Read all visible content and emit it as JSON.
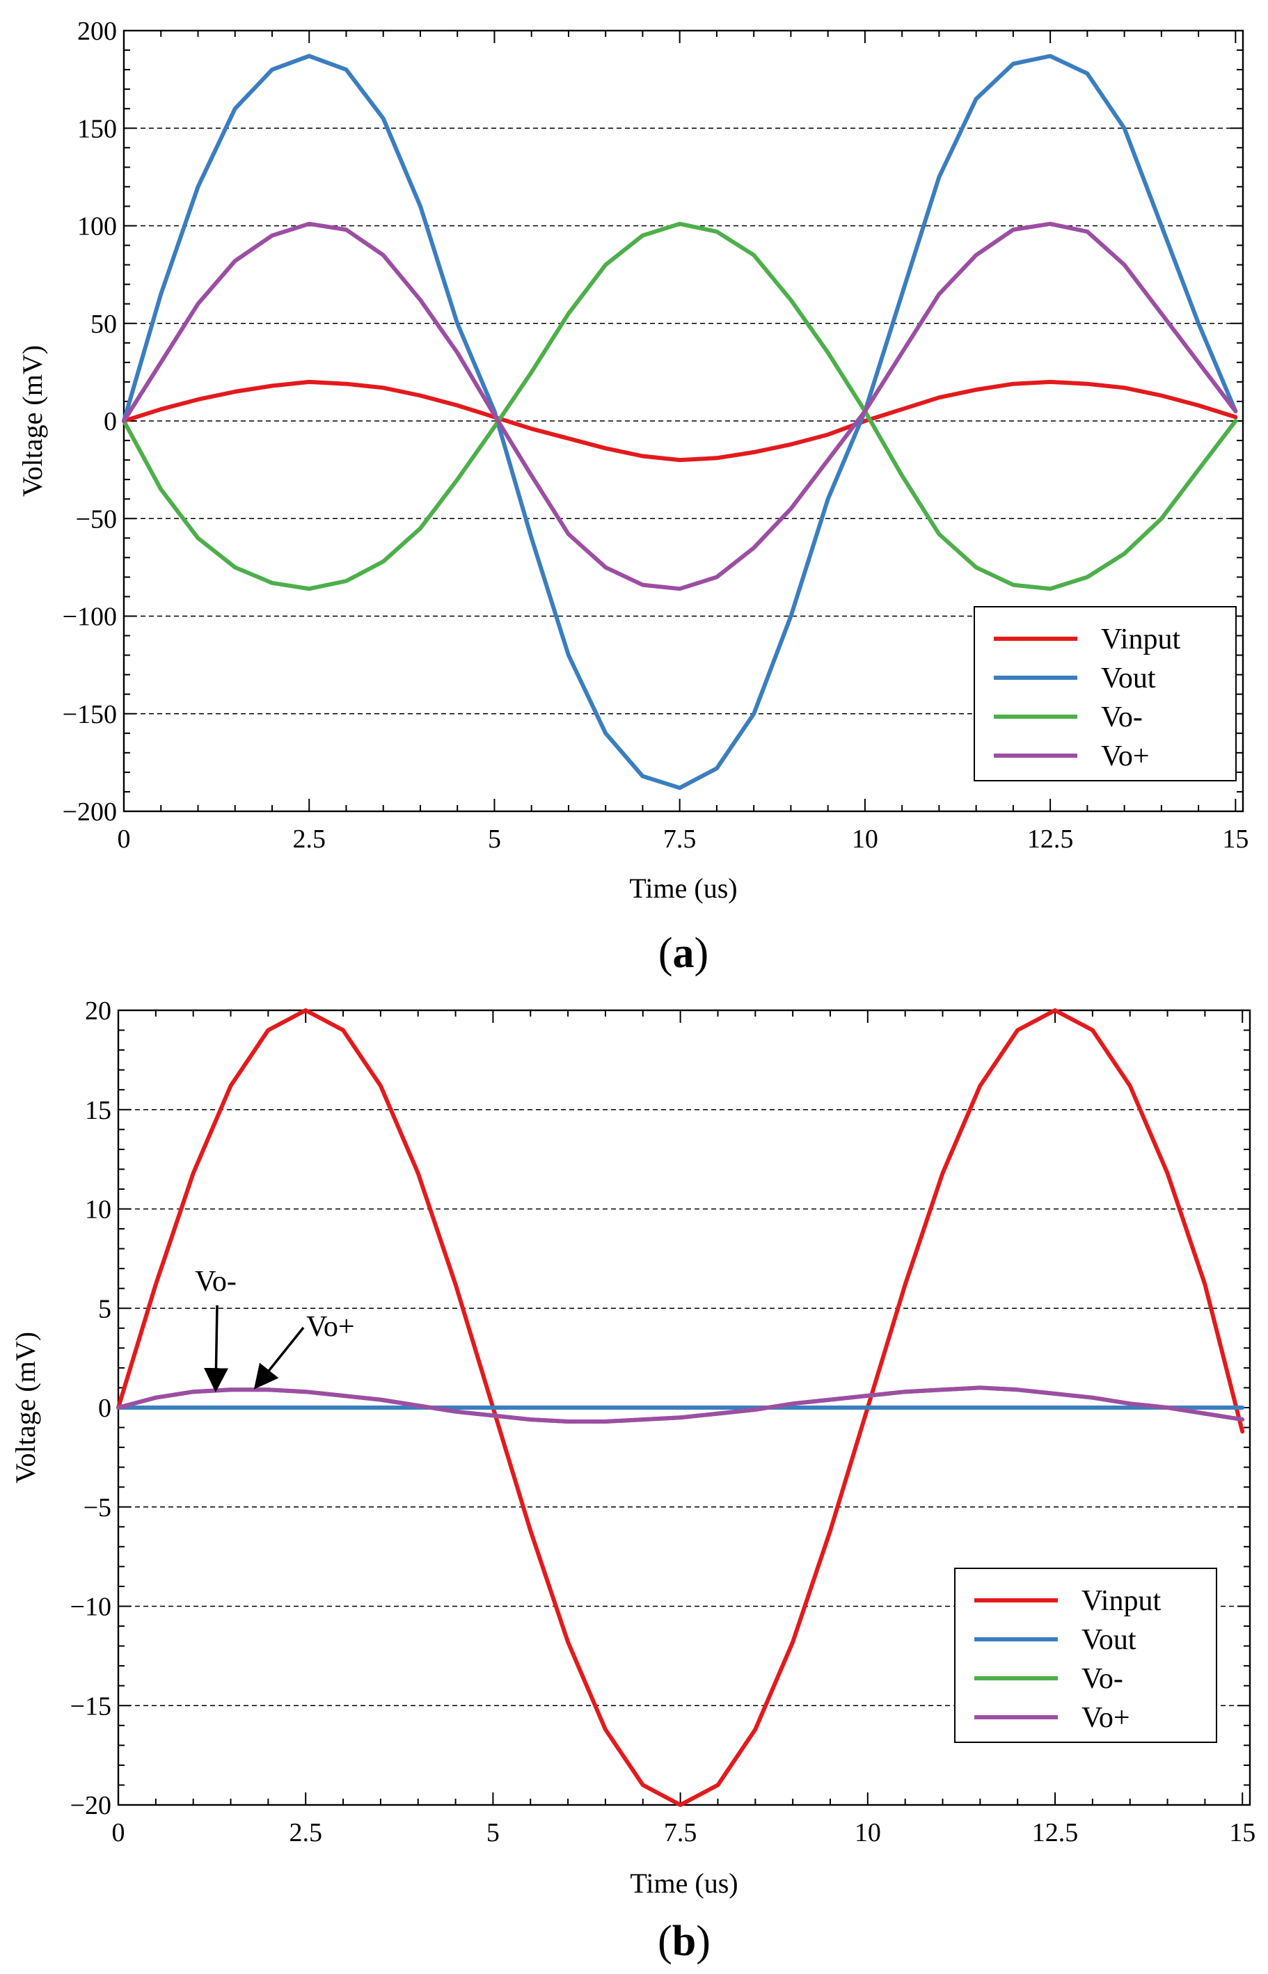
{
  "chart_data": [
    {
      "type": "line",
      "panel_label_open": "(",
      "panel_label_letter": "a",
      "panel_label_close": ")",
      "xlabel": "Time (us)",
      "ylabel": "Voltage (mV)",
      "xlim": [
        0,
        15.1
      ],
      "ylim": [
        -200,
        200
      ],
      "x_ticks": [
        0,
        2.5,
        5,
        7.5,
        10,
        12.5,
        15
      ],
      "x_tick_labels": [
        "0",
        "2.5",
        "5",
        "7.5",
        "10",
        "12.5",
        "15"
      ],
      "y_ticks": [
        -200,
        -150,
        -100,
        -50,
        0,
        50,
        100,
        150,
        200
      ],
      "y_tick_labels": [
        "−200",
        "−150",
        "−100",
        "−50",
        "0",
        "50",
        "100",
        "150",
        "200"
      ],
      "grid": "horizontal-dashed",
      "legend_position": "bottom-right",
      "x": [
        0,
        0.5,
        1,
        1.5,
        2,
        2.5,
        3,
        3.5,
        4,
        4.5,
        5,
        5.5,
        6,
        6.5,
        7,
        7.5,
        8,
        8.5,
        9,
        9.5,
        10,
        10.5,
        11,
        11.5,
        12,
        12.5,
        13,
        13.5,
        14,
        14.5,
        15
      ],
      "series": [
        {
          "name": "Vinput",
          "color": "#e31a1c",
          "values": [
            0,
            6,
            11,
            15,
            18,
            20,
            19,
            17,
            13,
            8,
            2,
            -4,
            -9,
            -14,
            -18,
            -20,
            -19,
            -16,
            -12,
            -7,
            0,
            6,
            12,
            16,
            19,
            20,
            19,
            17,
            13,
            8,
            2
          ]
        },
        {
          "name": "Vout",
          "color": "#3a7ebf",
          "values": [
            0,
            65,
            120,
            160,
            180,
            187,
            180,
            155,
            110,
            50,
            5,
            -60,
            -120,
            -160,
            -182,
            -188,
            -178,
            -150,
            -100,
            -40,
            5,
            65,
            125,
            165,
            183,
            187,
            178,
            150,
            100,
            50,
            5
          ]
        },
        {
          "name": "Vo-",
          "color": "#4daf4a",
          "values": [
            0,
            -35,
            -60,
            -75,
            -83,
            -86,
            -82,
            -72,
            -55,
            -30,
            -3,
            25,
            55,
            80,
            95,
            101,
            97,
            85,
            62,
            35,
            5,
            -28,
            -58,
            -75,
            -84,
            -86,
            -80,
            -68,
            -50,
            -25,
            0
          ]
        },
        {
          "name": "Vo+",
          "color": "#9c4ea3",
          "values": [
            0,
            30,
            60,
            82,
            95,
            101,
            98,
            85,
            62,
            35,
            3,
            -28,
            -58,
            -75,
            -84,
            -86,
            -80,
            -65,
            -45,
            -20,
            5,
            35,
            65,
            85,
            98,
            101,
            97,
            80,
            55,
            30,
            5
          ]
        }
      ]
    },
    {
      "type": "line",
      "panel_label_open": "(",
      "panel_label_letter": "b",
      "panel_label_close": ")",
      "xlabel": "Time (us)",
      "ylabel": "Voltage (mV)",
      "xlim": [
        0,
        15.1
      ],
      "ylim": [
        -20,
        20
      ],
      "x_ticks": [
        0,
        2.5,
        5,
        7.5,
        10,
        12.5,
        15
      ],
      "x_tick_labels": [
        "0",
        "2.5",
        "5",
        "7.5",
        "10",
        "12.5",
        "15"
      ],
      "y_ticks": [
        -20,
        -15,
        -10,
        -5,
        0,
        5,
        10,
        15,
        20
      ],
      "y_tick_labels": [
        "−20",
        "−15",
        "−10",
        "−5",
        "0",
        "5",
        "10",
        "15",
        "20"
      ],
      "grid": "horizontal-dashed",
      "legend_position": "bottom-right",
      "x": [
        0,
        0.5,
        1,
        1.5,
        2,
        2.5,
        3,
        3.5,
        4,
        4.5,
        5,
        5.5,
        6,
        6.5,
        7,
        7.5,
        8,
        8.5,
        9,
        9.5,
        10,
        10.5,
        11,
        11.5,
        12,
        12.5,
        13,
        13.5,
        14,
        14.5,
        15
      ],
      "series": [
        {
          "name": "Vinput",
          "color": "#e31a1c",
          "values": [
            0,
            6.2,
            11.8,
            16.2,
            19.0,
            20.0,
            19.0,
            16.2,
            11.8,
            6.2,
            0,
            -6.2,
            -11.8,
            -16.2,
            -19.0,
            -20.0,
            -19.0,
            -16.2,
            -11.8,
            -6.2,
            0,
            6.2,
            11.8,
            16.2,
            19.0,
            20.0,
            19.0,
            16.2,
            11.8,
            6.2,
            -1.2
          ]
        },
        {
          "name": "Vout",
          "color": "#3a7ebf",
          "values": [
            0,
            0,
            0,
            0,
            0,
            0,
            0,
            0,
            0,
            0,
            0,
            0,
            0,
            0,
            0,
            0,
            0,
            0,
            0,
            0,
            0,
            0,
            0,
            0,
            0,
            0,
            0,
            0,
            0,
            0,
            0
          ]
        },
        {
          "name": "Vo-",
          "color": "#4daf4a",
          "values": [
            0,
            0.5,
            0.8,
            0.9,
            0.9,
            0.8,
            0.6,
            0.4,
            0.1,
            -0.2,
            -0.4,
            -0.6,
            -0.7,
            -0.7,
            -0.6,
            -0.5,
            -0.3,
            -0.1,
            0.2,
            0.4,
            0.6,
            0.8,
            0.9,
            1.0,
            0.9,
            0.7,
            0.5,
            0.2,
            0.0,
            -0.3,
            -0.6
          ]
        },
        {
          "name": "Vo+",
          "color": "#9c4ea3",
          "values": [
            0,
            0.5,
            0.8,
            0.9,
            0.9,
            0.8,
            0.6,
            0.4,
            0.1,
            -0.2,
            -0.4,
            -0.6,
            -0.7,
            -0.7,
            -0.6,
            -0.5,
            -0.3,
            -0.1,
            0.2,
            0.4,
            0.6,
            0.8,
            0.9,
            1.0,
            0.9,
            0.7,
            0.5,
            0.2,
            0.0,
            -0.3,
            -0.6
          ]
        }
      ],
      "annotations": [
        {
          "text": "Vo-",
          "target_x": 1.3,
          "target_y": 0.8
        },
        {
          "text": "Vo+",
          "target_x": 1.85,
          "target_y": 0.9
        }
      ]
    }
  ]
}
